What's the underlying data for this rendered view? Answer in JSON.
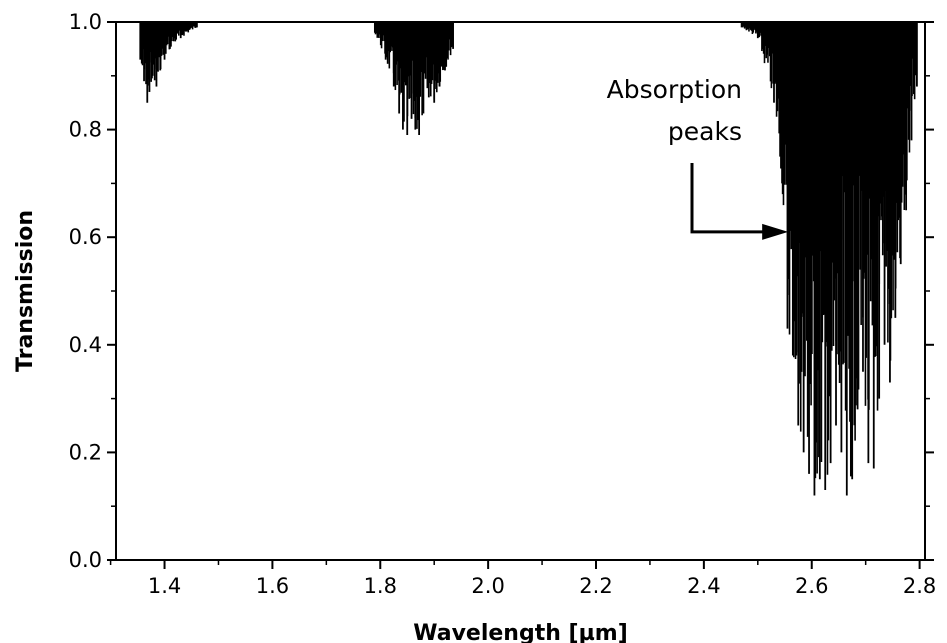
{
  "chart_data": {
    "type": "line",
    "title": "",
    "xlabel": "Wavelength [µm]",
    "ylabel": "Transmission",
    "xlim": [
      1.31,
      2.81
    ],
    "ylim": [
      0.0,
      1.0
    ],
    "x_ticks": [
      "1.4",
      "1.6",
      "1.8",
      "2.0",
      "2.2",
      "2.4",
      "2.6",
      "2.8"
    ],
    "y_ticks": [
      "0.0",
      "0.2",
      "0.4",
      "0.6",
      "0.8",
      "1.0"
    ],
    "grid": false,
    "legend": "none",
    "line_color": "#000000",
    "series": [
      {
        "bands": [
          {
            "range": [
              1.34,
              1.48
            ],
            "center": 1.368,
            "min_transmission": 0.85
          },
          {
            "range": [
              1.78,
              1.95
            ],
            "center": 1.86,
            "min_transmission": 0.79
          },
          {
            "range": [
              2.45,
              2.81
            ],
            "center": 2.63,
            "min_transmission": 0.12
          }
        ],
        "sampled_minima": [
          [
            1.355,
            0.93
          ],
          [
            1.362,
            0.89
          ],
          [
            1.368,
            0.85
          ],
          [
            1.372,
            0.87
          ],
          [
            1.378,
            0.9
          ],
          [
            1.385,
            0.88
          ],
          [
            1.392,
            0.91
          ],
          [
            1.4,
            0.93
          ],
          [
            1.41,
            0.95
          ],
          [
            1.43,
            0.97
          ],
          [
            1.46,
            0.99
          ],
          [
            1.79,
            0.98
          ],
          [
            1.81,
            0.93
          ],
          [
            1.825,
            0.88
          ],
          [
            1.835,
            0.83
          ],
          [
            1.842,
            0.8
          ],
          [
            1.85,
            0.79
          ],
          [
            1.858,
            0.82
          ],
          [
            1.865,
            0.8
          ],
          [
            1.872,
            0.79
          ],
          [
            1.88,
            0.83
          ],
          [
            1.89,
            0.86
          ],
          [
            1.9,
            0.85
          ],
          [
            1.91,
            0.88
          ],
          [
            1.92,
            0.91
          ],
          [
            1.935,
            0.95
          ],
          [
            2.47,
            0.99
          ],
          [
            2.5,
            0.97
          ],
          [
            2.53,
            0.85
          ],
          [
            2.545,
            0.7
          ],
          [
            2.555,
            0.43
          ],
          [
            2.565,
            0.38
          ],
          [
            2.575,
            0.25
          ],
          [
            2.585,
            0.2
          ],
          [
            2.595,
            0.16
          ],
          [
            2.605,
            0.12
          ],
          [
            2.615,
            0.15
          ],
          [
            2.625,
            0.13
          ],
          [
            2.635,
            0.18
          ],
          [
            2.645,
            0.25
          ],
          [
            2.655,
            0.2
          ],
          [
            2.665,
            0.12
          ],
          [
            2.675,
            0.15
          ],
          [
            2.685,
            0.28
          ],
          [
            2.695,
            0.35
          ],
          [
            2.705,
            0.18
          ],
          [
            2.715,
            0.17
          ],
          [
            2.725,
            0.3
          ],
          [
            2.735,
            0.4
          ],
          [
            2.745,
            0.33
          ],
          [
            2.755,
            0.45
          ],
          [
            2.765,
            0.55
          ],
          [
            2.775,
            0.65
          ],
          [
            2.785,
            0.78
          ],
          [
            2.795,
            0.88
          ]
        ]
      }
    ],
    "annotations": [
      {
        "lines": [
          "Absorption",
          "peaks"
        ],
        "arrow_to": [
          2.56,
          0.61
        ]
      }
    ]
  }
}
